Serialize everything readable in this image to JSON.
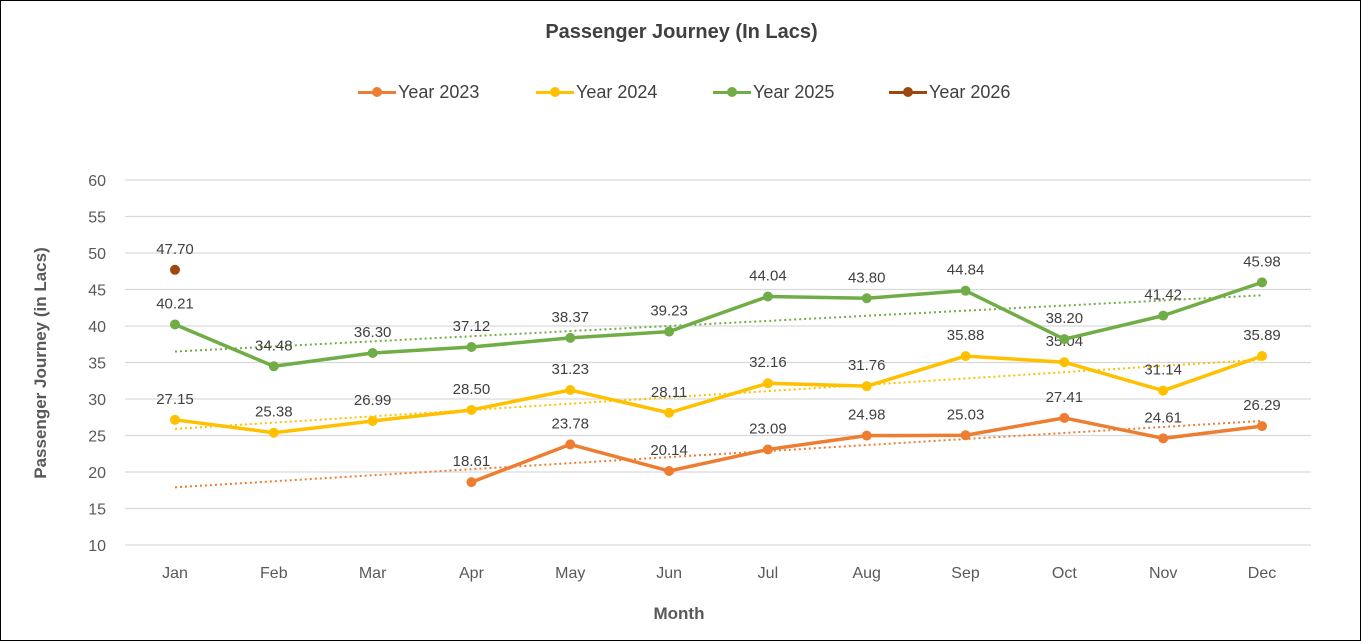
{
  "chart_data": {
    "type": "line",
    "title": "Passenger Journey (In Lacs)",
    "xlabel": "Month",
    "ylabel": "Passenger Journey (in Lacs)",
    "ylim": [
      10,
      60
    ],
    "yticks": [
      10,
      15,
      20,
      25,
      30,
      35,
      40,
      45,
      50,
      55,
      60
    ],
    "grid": true,
    "legend_position": "top",
    "categories": [
      "Jan",
      "Feb",
      "Mar",
      "Apr",
      "May",
      "Jun",
      "Jul",
      "Aug",
      "Sep",
      "Oct",
      "Nov",
      "Dec"
    ],
    "series": [
      {
        "name": "Year 2023",
        "color": "#ED7D31",
        "values": [
          null,
          null,
          null,
          18.61,
          23.78,
          20.14,
          23.09,
          24.98,
          25.03,
          27.41,
          24.61,
          26.29
        ],
        "labels": [
          null,
          null,
          null,
          "18.61",
          "23.78",
          "20.14",
          "23.09",
          "24.98",
          "25.03",
          "27.41",
          "24.61",
          "26.29"
        ],
        "trendline": {
          "start": 17.9,
          "end": 27.0
        }
      },
      {
        "name": "Year 2024",
        "color": "#FFC000",
        "values": [
          27.15,
          25.38,
          26.99,
          28.5,
          31.23,
          28.11,
          32.16,
          31.76,
          35.88,
          35.04,
          31.14,
          35.89
        ],
        "labels": [
          "27.15",
          "25.38",
          "26.99",
          "28.50",
          "31.23",
          "28.11",
          "32.16",
          "31.76",
          "35.88",
          "35.04",
          "31.14",
          "35.89"
        ],
        "trendline": {
          "start": 25.9,
          "end": 35.4
        }
      },
      {
        "name": "Year 2025",
        "color": "#70AD47",
        "values": [
          40.21,
          34.48,
          36.3,
          37.12,
          38.37,
          39.23,
          44.04,
          43.8,
          44.84,
          38.2,
          41.42,
          45.98
        ],
        "labels": [
          "40.21",
          "34.48",
          "36.30",
          "37.12",
          "38.37",
          "39.23",
          "44.04",
          "43.80",
          "44.84",
          "38.20",
          "41.42",
          "45.98"
        ],
        "trendline": {
          "start": 36.5,
          "end": 44.2
        }
      },
      {
        "name": "Year 2026",
        "color": "#9E480E",
        "values": [
          47.7,
          null,
          null,
          null,
          null,
          null,
          null,
          null,
          null,
          null,
          null,
          null
        ],
        "labels": [
          "47.70",
          null,
          null,
          null,
          null,
          null,
          null,
          null,
          null,
          null,
          null,
          null
        ],
        "trendline": null
      }
    ]
  }
}
